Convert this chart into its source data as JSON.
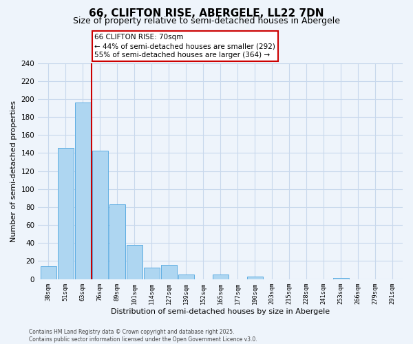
{
  "title": "66, CLIFTON RISE, ABERGELE, LL22 7DN",
  "subtitle": "Size of property relative to semi-detached houses in Abergele",
  "xlabel": "Distribution of semi-detached houses by size in Abergele",
  "ylabel": "Number of semi-detached properties",
  "categories": [
    "38sqm",
    "51sqm",
    "63sqm",
    "76sqm",
    "89sqm",
    "101sqm",
    "114sqm",
    "127sqm",
    "139sqm",
    "152sqm",
    "165sqm",
    "177sqm",
    "190sqm",
    "203sqm",
    "215sqm",
    "228sqm",
    "241sqm",
    "253sqm",
    "266sqm",
    "279sqm",
    "291sqm"
  ],
  "values": [
    14,
    146,
    196,
    143,
    83,
    38,
    13,
    16,
    5,
    0,
    5,
    0,
    3,
    0,
    0,
    0,
    0,
    1,
    0,
    0,
    0
  ],
  "bar_color": "#aed6f1",
  "bar_edge_color": "#5dade2",
  "vline_x_index": 2.5,
  "vline_color": "#cc0000",
  "annotation_title": "66 CLIFTON RISE: 70sqm",
  "annotation_line1": "← 44% of semi-detached houses are smaller (292)",
  "annotation_line2": "55% of semi-detached houses are larger (364) →",
  "ylim": [
    0,
    240
  ],
  "yticks": [
    0,
    20,
    40,
    60,
    80,
    100,
    120,
    140,
    160,
    180,
    200,
    220,
    240
  ],
  "background_color": "#eef4fb",
  "grid_color": "#c8d8ec",
  "title_fontsize": 11,
  "subtitle_fontsize": 9,
  "footnote1": "Contains HM Land Registry data © Crown copyright and database right 2025.",
  "footnote2": "Contains public sector information licensed under the Open Government Licence v3.0."
}
